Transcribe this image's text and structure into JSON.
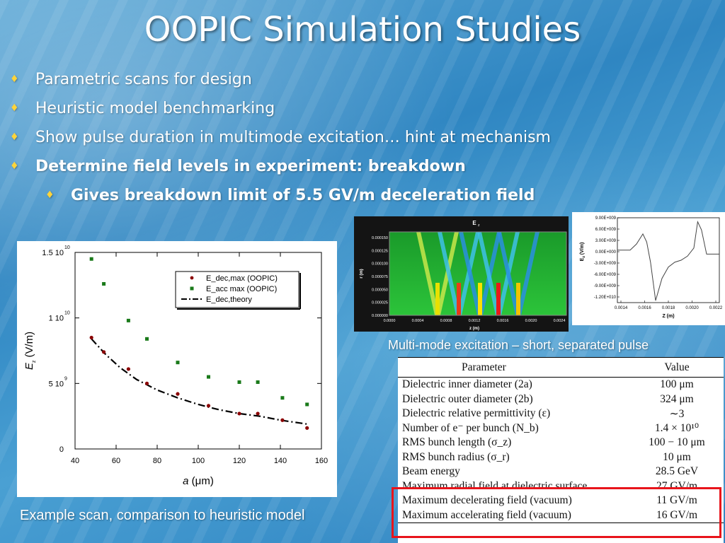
{
  "slide": {
    "title": "OOPIC Simulation Studies",
    "bullets": [
      {
        "text": "Parametric scans for design",
        "level": 1,
        "bold": false
      },
      {
        "text": "Heuristic model benchmarking",
        "level": 1,
        "bold": false
      },
      {
        "text": "Show pulse duration in multimode excitation… hint at mechanism",
        "level": 1,
        "bold": false
      },
      {
        "text": "Determine field levels in experiment: breakdown",
        "level": 1,
        "bold": true
      },
      {
        "text": "Gives breakdown limit of 5.5 GV/m deceleration field",
        "level": 2,
        "bold": true
      }
    ],
    "caption_sim": "Multi-mode excitation – short, separated pulse",
    "caption_plot": "Example scan, comparison to heuristic model",
    "bullet_color": "#ffd43b"
  },
  "chart_data": [
    {
      "type": "scatter",
      "xlabel_italic": "a",
      "xlabel_unit": "(μm)",
      "ylabel_italic": "E",
      "ylabel_sub": "z",
      "ylabel_unit": "(V/m)",
      "xlim": [
        40,
        160
      ],
      "ylim": [
        0,
        15000000000
      ],
      "x_ticks": [
        40,
        60,
        80,
        100,
        120,
        140,
        160
      ],
      "x_tick_labels": [
        "40",
        "60",
        "80",
        "100",
        "120",
        "140",
        "160"
      ],
      "y_ticks": [
        0,
        5000000000,
        10000000000,
        15000000000
      ],
      "y_tick_labels": [
        "0",
        "5 10",
        "1 10",
        "1.5 10"
      ],
      "y_tick_exps": [
        "",
        "9",
        "10",
        "10"
      ],
      "legend_position": "top-right",
      "series": [
        {
          "name": "E_dec,max (OOPIC)",
          "marker": "circle",
          "color": "#8b0000",
          "x": [
            48,
            54,
            66,
            75,
            90,
            105,
            120,
            129,
            141,
            153
          ],
          "y": [
            8500000000,
            7400000000,
            6100000000,
            5000000000,
            4200000000,
            3300000000,
            2700000000,
            2700000000,
            2200000000,
            1600000000
          ]
        },
        {
          "name": "E_acc max (OOPIC)",
          "marker": "square",
          "color": "#1a7a1a",
          "x": [
            48,
            54,
            66,
            75,
            90,
            105,
            120,
            129,
            141,
            153
          ],
          "y": [
            14500000000,
            12600000000,
            9800000000,
            8400000000,
            6600000000,
            5500000000,
            5100000000,
            5100000000,
            3900000000,
            3400000000
          ]
        },
        {
          "name": "E_dec,theory",
          "marker": "dashdot-line",
          "color": "#000000",
          "x": [
            48,
            55,
            62,
            70,
            80,
            90,
            100,
            110,
            120,
            130,
            140,
            153
          ],
          "y": [
            8400000000,
            7200000000,
            6200000000,
            5300000000,
            4500000000,
            3900000000,
            3400000000,
            3000000000,
            2700000000,
            2500000000,
            2200000000,
            1900000000
          ]
        }
      ]
    },
    {
      "type": "heatmap",
      "title": "E",
      "title_sub": "z",
      "xlabel": "z (m)",
      "ylabel": "r (m)",
      "x_tick_labels": [
        "0.0000",
        "0.0004",
        "0.0008",
        "0.0012",
        "0.0016",
        "0.0020",
        "0.0024"
      ],
      "y_tick_labels": [
        "0.000000",
        "0.000025",
        "0.000050",
        "0.000075",
        "0.000100",
        "0.000125",
        "0.000150"
      ]
    },
    {
      "type": "line",
      "xlabel": "Z (m)",
      "ylabel": "E",
      "ylabel_sub": "z",
      "ylabel_unit": "(V/m)",
      "xlim": [
        0.0014,
        0.0022
      ],
      "ylim": [
        -12000000000,
        9000000000
      ],
      "x_tick_labels": [
        "0.0014",
        "0.0016",
        "0.0018",
        "0.0020",
        "0.0022"
      ],
      "y_tick_labels": [
        "9.00E+009",
        "6.00E+009",
        "3.00E+009",
        "0.00E+000",
        "-3.00E+009",
        "-6.00E+009",
        "-9.00E+009",
        "-1.20E+010"
      ],
      "x": [
        0.0014,
        0.0015,
        0.00155,
        0.0016,
        0.00163,
        0.00166,
        0.0017,
        0.00175,
        0.0018,
        0.00185,
        0.0019,
        0.00195,
        0.002,
        0.00203,
        0.00206,
        0.0021,
        0.0022
      ],
      "y": [
        1000000000,
        1000000000,
        2500000000,
        5000000000,
        3000000000,
        -2000000000,
        -11500000000,
        -6000000000,
        -3200000000,
        -2000000000,
        -1500000000,
        -500000000,
        1500000000,
        8000000000,
        6000000000,
        0,
        0
      ]
    }
  ],
  "table": {
    "headers": [
      "Parameter",
      "Value"
    ],
    "rows": [
      [
        "Dielectric inner diameter (2a)",
        "100 μm"
      ],
      [
        "Dielectric outer diameter (2b)",
        "324 μm"
      ],
      [
        "Dielectric relative permittivity (ε)",
        "∼3"
      ],
      [
        "Number of e⁻ per bunch (N_b)",
        "1.4 × 10¹⁰"
      ],
      [
        "RMS bunch length (σ_z)",
        "100 − 10 μm"
      ],
      [
        "RMS bunch radius (σ_r)",
        "10 μm"
      ],
      [
        "Beam energy",
        "28.5 GeV"
      ],
      [
        "Maximum radial field at dielectric surface",
        "27 GV/m"
      ],
      [
        "Maximum decelerating field (vacuum)",
        "11 GV/m"
      ],
      [
        "Maximum accelerating field (vacuum)",
        "16 GV/m"
      ]
    ],
    "highlight_color": "#e8141b"
  }
}
